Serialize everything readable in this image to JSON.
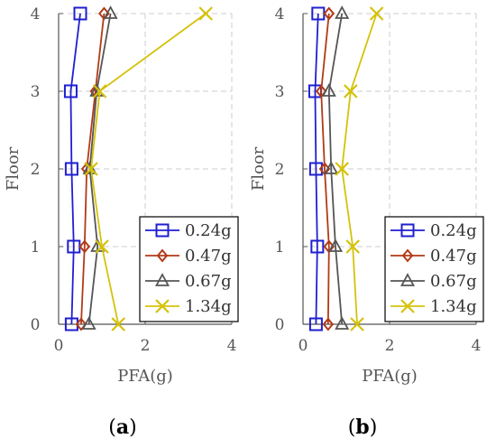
{
  "chart_data": [
    {
      "type": "line",
      "panel_label": "(a)",
      "xlabel": "PFA(g)",
      "ylabel": "Floor",
      "xlim": [
        0,
        4
      ],
      "ylim": [
        0,
        4
      ],
      "xticks": [
        "0",
        "2",
        "4"
      ],
      "yticks": [
        "0",
        "1",
        "2",
        "3",
        "4"
      ],
      "grid": true,
      "legend_position": "lower-right",
      "orientation": "x-value-y-floor",
      "series": [
        {
          "name": "0.24g",
          "color": "#1f1fd0",
          "marker": "square",
          "floors": [
            0,
            1,
            2,
            3,
            4
          ],
          "values": [
            0.3,
            0.35,
            0.3,
            0.28,
            0.5
          ]
        },
        {
          "name": "0.47g",
          "color": "#b23a17",
          "marker": "diamond",
          "floors": [
            0,
            1,
            2,
            3,
            4
          ],
          "values": [
            0.52,
            0.6,
            0.65,
            0.85,
            1.05
          ]
        },
        {
          "name": "0.67g",
          "color": "#555555",
          "marker": "triangle",
          "floors": [
            0,
            1,
            2,
            3,
            4
          ],
          "values": [
            0.7,
            0.9,
            0.72,
            0.88,
            1.2
          ]
        },
        {
          "name": "1.34g",
          "color": "#d4c20a",
          "marker": "x",
          "floors": [
            0,
            1,
            2,
            3,
            4
          ],
          "values": [
            1.38,
            1.0,
            0.75,
            0.95,
            3.4
          ]
        }
      ]
    },
    {
      "type": "line",
      "panel_label": "(b)",
      "xlabel": "PFA(g)",
      "ylabel": "Floor",
      "xlim": [
        0,
        4
      ],
      "ylim": [
        0,
        4
      ],
      "xticks": [
        "0",
        "2",
        "4"
      ],
      "yticks": [
        "0",
        "1",
        "2",
        "3",
        "4"
      ],
      "grid": true,
      "legend_position": "lower-right",
      "orientation": "x-value-y-floor",
      "series": [
        {
          "name": "0.24g",
          "color": "#1f1fd0",
          "marker": "square",
          "floors": [
            0,
            1,
            2,
            3,
            4
          ],
          "values": [
            0.3,
            0.33,
            0.3,
            0.28,
            0.35
          ]
        },
        {
          "name": "0.47g",
          "color": "#b23a17",
          "marker": "diamond",
          "floors": [
            0,
            1,
            2,
            3,
            4
          ],
          "values": [
            0.58,
            0.6,
            0.5,
            0.42,
            0.6
          ]
        },
        {
          "name": "0.67g",
          "color": "#555555",
          "marker": "triangle",
          "floors": [
            0,
            1,
            2,
            3,
            4
          ],
          "values": [
            0.9,
            0.75,
            0.65,
            0.6,
            0.9
          ]
        },
        {
          "name": "1.34g",
          "color": "#d4c20a",
          "marker": "x",
          "floors": [
            0,
            1,
            2,
            3,
            4
          ],
          "values": [
            1.25,
            1.15,
            0.9,
            1.1,
            1.7
          ]
        }
      ]
    }
  ]
}
